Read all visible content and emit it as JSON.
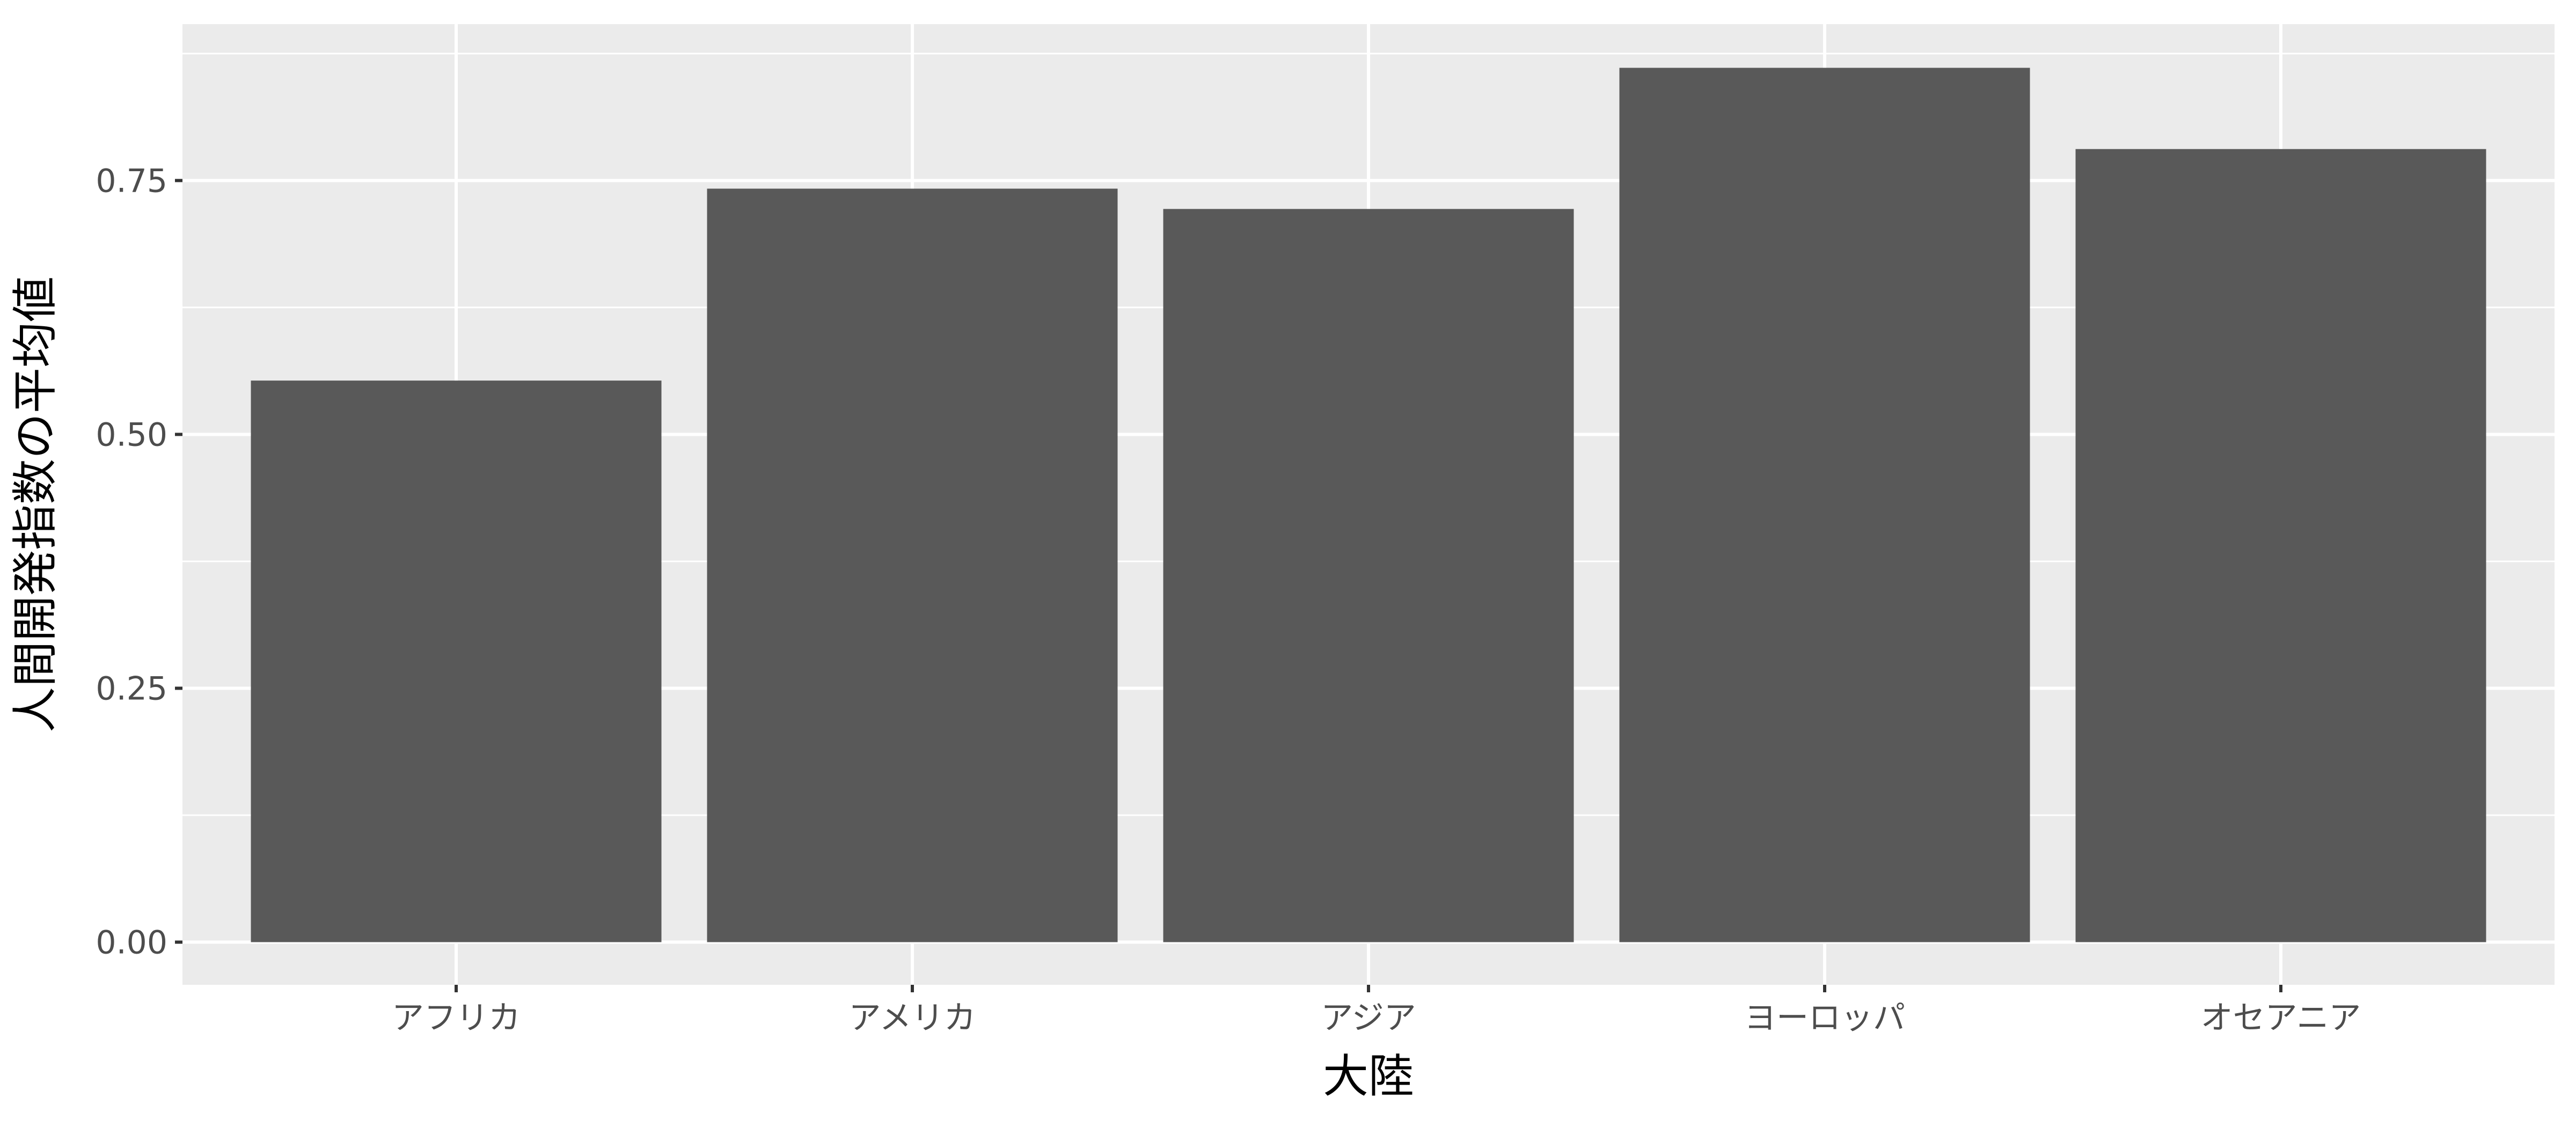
{
  "chart_data": {
    "type": "bar",
    "categories": [
      "アフリカ",
      "アメリカ",
      "アジア",
      "ヨーロッパ",
      "オセアニア"
    ],
    "values": [
      0.553,
      0.742,
      0.722,
      0.861,
      0.781
    ],
    "xlabel": "大陸",
    "ylabel": "人間開発指数の平均値",
    "ylim": [
      -0.042,
      0.904
    ],
    "yticks": [
      0.0,
      0.25,
      0.5,
      0.75
    ],
    "ytick_labels": [
      "0.00",
      "0.25",
      "0.50",
      "0.75"
    ],
    "grid": true,
    "legend": "none"
  },
  "colors": {
    "panel_background": "#ebebeb",
    "grid_line": "#ffffff",
    "bar_fill": "#595959",
    "tick_text": "#4d4d4d",
    "axis_title_text": "#000000"
  }
}
